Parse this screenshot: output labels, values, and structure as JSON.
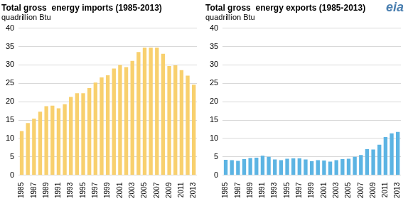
{
  "logo": "eia",
  "chart_data": [
    {
      "type": "bar",
      "title": "Total gross  energy imports (1985-2013)",
      "subtitle": "quadrillion Btu",
      "categories": [
        "1985",
        null,
        "1987",
        null,
        "1989",
        null,
        "1991",
        null,
        "1993",
        null,
        "1995",
        null,
        "1997",
        null,
        "1999",
        null,
        "2001",
        null,
        "2003",
        null,
        "2005",
        null,
        "2007",
        null,
        "2009",
        null,
        "2011",
        null,
        "2013"
      ],
      "values": [
        12.0,
        14.2,
        15.4,
        17.3,
        18.8,
        18.9,
        18.2,
        19.3,
        21.3,
        22.3,
        22.3,
        23.7,
        25.2,
        26.6,
        27.2,
        29.0,
        30.0,
        29.4,
        31.1,
        33.5,
        34.7,
        34.7,
        34.7,
        33.0,
        29.7,
        29.9,
        28.6,
        27.1,
        24.6
      ],
      "color": "#f8d06e",
      "ylim": [
        0,
        40
      ],
      "yticks": [
        0,
        5,
        10,
        15,
        20,
        25,
        30,
        35,
        40
      ],
      "grid": true
    },
    {
      "type": "bar",
      "title": "Total gross  energy exports (1985-2013)",
      "subtitle": "quadrillion Btu",
      "categories": [
        "1985",
        null,
        "1987",
        null,
        "1989",
        null,
        "1991",
        null,
        "1993",
        null,
        "1995",
        null,
        "1997",
        null,
        "1999",
        null,
        "2001",
        null,
        "2003",
        null,
        "2005",
        null,
        "2007",
        null,
        "2009",
        null,
        "2011",
        null,
        "2013"
      ],
      "values": [
        4.2,
        4.1,
        3.9,
        4.4,
        4.7,
        4.8,
        5.3,
        5.0,
        4.3,
        4.1,
        4.5,
        4.6,
        4.6,
        4.3,
        3.8,
        4.1,
        4.0,
        3.7,
        4.1,
        4.4,
        4.5,
        5.0,
        5.5,
        7.1,
        7.0,
        8.3,
        10.4,
        11.4,
        11.8
      ],
      "color": "#5cb4e3",
      "ylim": [
        0,
        40
      ],
      "yticks": [
        0,
        5,
        10,
        15,
        20,
        25,
        30,
        35,
        40
      ],
      "grid": true
    }
  ]
}
